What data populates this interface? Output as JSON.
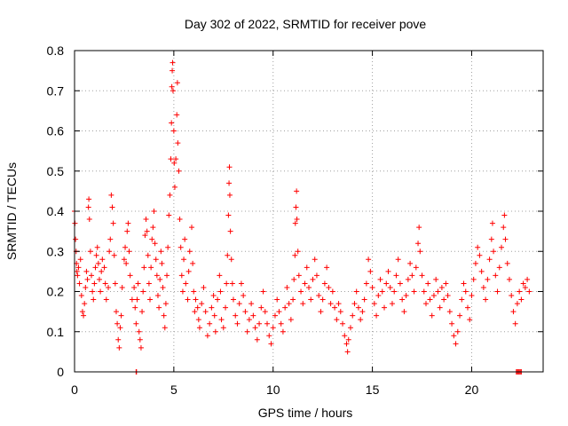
{
  "chart_data": {
    "type": "scatter",
    "title": "Day 302 of 2022, SRMTID for receiver pove",
    "xlabel": "GPS time / hours",
    "ylabel": "SRMTID / TECUs",
    "xlim": [
      0,
      23.6
    ],
    "ylim": [
      0,
      0.8
    ],
    "xticks": [
      0,
      5,
      10,
      15,
      20
    ],
    "xtick_labels": [
      "0",
      "5",
      "10",
      "15",
      "20"
    ],
    "yticks": [
      0,
      0.1,
      0.2,
      0.3,
      0.4,
      0.5,
      0.6,
      0.7,
      0.8
    ],
    "ytick_labels": [
      "0",
      "0.1",
      "0.2",
      "0.3",
      "0.4",
      "0.5",
      "0.6",
      "0.7",
      "0.8"
    ],
    "grid": true,
    "marker": "+",
    "marker_color": "#ff0000",
    "series": [
      {
        "name": "SRMTID",
        "points": [
          [
            0.0,
            0.4
          ],
          [
            0.02,
            0.37
          ],
          [
            0.05,
            0.33
          ],
          [
            0.08,
            0.3
          ],
          [
            0.1,
            0.27
          ],
          [
            0.12,
            0.25
          ],
          [
            0.15,
            0.24
          ],
          [
            0.2,
            0.26
          ],
          [
            0.25,
            0.22
          ],
          [
            0.3,
            0.28
          ],
          [
            0.35,
            0.19
          ],
          [
            0.4,
            0.15
          ],
          [
            0.45,
            0.14
          ],
          [
            0.5,
            0.17
          ],
          [
            0.55,
            0.21
          ],
          [
            0.6,
            0.25
          ],
          [
            0.65,
            0.23
          ],
          [
            0.7,
            0.41
          ],
          [
            0.72,
            0.43
          ],
          [
            0.75,
            0.38
          ],
          [
            0.8,
            0.3
          ],
          [
            0.85,
            0.24
          ],
          [
            0.9,
            0.2
          ],
          [
            0.95,
            0.18
          ],
          [
            1.0,
            0.22
          ],
          [
            1.05,
            0.26
          ],
          [
            1.1,
            0.29
          ],
          [
            1.15,
            0.31
          ],
          [
            1.2,
            0.27
          ],
          [
            1.25,
            0.23
          ],
          [
            1.3,
            0.2
          ],
          [
            1.35,
            0.25
          ],
          [
            1.4,
            0.28
          ],
          [
            1.5,
            0.26
          ],
          [
            1.55,
            0.22
          ],
          [
            1.6,
            0.18
          ],
          [
            1.7,
            0.21
          ],
          [
            1.75,
            0.3
          ],
          [
            1.8,
            0.33
          ],
          [
            1.85,
            0.44
          ],
          [
            1.9,
            0.41
          ],
          [
            1.95,
            0.37
          ],
          [
            2.0,
            0.29
          ],
          [
            2.05,
            0.22
          ],
          [
            2.1,
            0.15
          ],
          [
            2.15,
            0.12
          ],
          [
            2.2,
            0.08
          ],
          [
            2.25,
            0.06
          ],
          [
            2.3,
            0.11
          ],
          [
            2.35,
            0.14
          ],
          [
            2.4,
            0.21
          ],
          [
            2.5,
            0.28
          ],
          [
            2.55,
            0.31
          ],
          [
            2.6,
            0.27
          ],
          [
            2.65,
            0.35
          ],
          [
            2.7,
            0.37
          ],
          [
            2.75,
            0.3
          ],
          [
            2.8,
            0.24
          ],
          [
            2.9,
            0.18
          ],
          [
            3.0,
            0.21
          ],
          [
            3.05,
            0.16
          ],
          [
            3.1,
            0.12
          ],
          [
            3.15,
            0.18
          ],
          [
            3.2,
            0.22
          ],
          [
            3.25,
            0.1
          ],
          [
            3.3,
            0.08
          ],
          [
            3.35,
            0.06
          ],
          [
            3.4,
            0.15
          ],
          [
            3.45,
            0.2
          ],
          [
            3.5,
            0.26
          ],
          [
            3.55,
            0.34
          ],
          [
            3.6,
            0.38
          ],
          [
            3.65,
            0.35
          ],
          [
            3.7,
            0.29
          ],
          [
            3.75,
            0.22
          ],
          [
            3.8,
            0.18
          ],
          [
            3.85,
            0.26
          ],
          [
            3.9,
            0.33
          ],
          [
            3.95,
            0.36
          ],
          [
            4.0,
            0.4
          ],
          [
            4.05,
            0.32
          ],
          [
            4.1,
            0.28
          ],
          [
            4.15,
            0.24
          ],
          [
            4.2,
            0.19
          ],
          [
            4.25,
            0.16
          ],
          [
            4.3,
            0.23
          ],
          [
            4.35,
            0.3
          ],
          [
            4.4,
            0.27
          ],
          [
            4.45,
            0.21
          ],
          [
            4.5,
            0.14
          ],
          [
            4.55,
            0.11
          ],
          [
            4.6,
            0.17
          ],
          [
            4.65,
            0.24
          ],
          [
            4.7,
            0.31
          ],
          [
            4.75,
            0.39
          ],
          [
            4.8,
            0.44
          ],
          [
            4.85,
            0.53
          ],
          [
            4.88,
            0.62
          ],
          [
            4.9,
            0.71
          ],
          [
            4.92,
            0.75
          ],
          [
            4.94,
            0.77
          ],
          [
            4.96,
            0.7
          ],
          [
            5.0,
            0.6
          ],
          [
            5.02,
            0.52
          ],
          [
            5.05,
            0.46
          ],
          [
            5.1,
            0.53
          ],
          [
            5.15,
            0.64
          ],
          [
            5.18,
            0.72
          ],
          [
            5.2,
            0.57
          ],
          [
            5.25,
            0.5
          ],
          [
            5.3,
            0.38
          ],
          [
            5.35,
            0.31
          ],
          [
            5.4,
            0.24
          ],
          [
            5.45,
            0.2
          ],
          [
            5.5,
            0.28
          ],
          [
            5.55,
            0.33
          ],
          [
            5.6,
            0.22
          ],
          [
            5.7,
            0.18
          ],
          [
            5.75,
            0.25
          ],
          [
            5.8,
            0.3
          ],
          [
            5.9,
            0.36
          ],
          [
            5.95,
            0.27
          ],
          [
            6.0,
            0.2
          ],
          [
            6.05,
            0.15
          ],
          [
            6.1,
            0.18
          ],
          [
            6.2,
            0.16
          ],
          [
            6.25,
            0.13
          ],
          [
            6.3,
            0.11
          ],
          [
            6.4,
            0.17
          ],
          [
            6.5,
            0.21
          ],
          [
            6.6,
            0.15
          ],
          [
            6.7,
            0.09
          ],
          [
            6.8,
            0.12
          ],
          [
            6.9,
            0.16
          ],
          [
            7.0,
            0.19
          ],
          [
            7.05,
            0.14
          ],
          [
            7.1,
            0.1
          ],
          [
            7.2,
            0.18
          ],
          [
            7.3,
            0.24
          ],
          [
            7.35,
            0.2
          ],
          [
            7.4,
            0.13
          ],
          [
            7.5,
            0.11
          ],
          [
            7.6,
            0.16
          ],
          [
            7.65,
            0.22
          ],
          [
            7.7,
            0.29
          ],
          [
            7.75,
            0.39
          ],
          [
            7.78,
            0.47
          ],
          [
            7.8,
            0.51
          ],
          [
            7.82,
            0.44
          ],
          [
            7.85,
            0.35
          ],
          [
            7.9,
            0.28
          ],
          [
            7.95,
            0.22
          ],
          [
            8.0,
            0.18
          ],
          [
            8.1,
            0.14
          ],
          [
            8.2,
            0.12
          ],
          [
            8.3,
            0.17
          ],
          [
            8.4,
            0.22
          ],
          [
            8.5,
            0.19
          ],
          [
            8.6,
            0.15
          ],
          [
            8.7,
            0.1
          ],
          [
            8.8,
            0.13
          ],
          [
            8.9,
            0.17
          ],
          [
            9.0,
            0.14
          ],
          [
            9.1,
            0.11
          ],
          [
            9.2,
            0.08
          ],
          [
            9.3,
            0.12
          ],
          [
            9.4,
            0.16
          ],
          [
            9.5,
            0.2
          ],
          [
            9.6,
            0.15
          ],
          [
            9.7,
            0.12
          ],
          [
            9.8,
            0.09
          ],
          [
            9.9,
            0.07
          ],
          [
            10.0,
            0.11
          ],
          [
            10.1,
            0.14
          ],
          [
            10.2,
            0.18
          ],
          [
            10.3,
            0.15
          ],
          [
            10.4,
            0.12
          ],
          [
            10.5,
            0.1
          ],
          [
            10.6,
            0.16
          ],
          [
            10.7,
            0.21
          ],
          [
            10.8,
            0.17
          ],
          [
            10.9,
            0.13
          ],
          [
            11.0,
            0.18
          ],
          [
            11.05,
            0.23
          ],
          [
            11.1,
            0.29
          ],
          [
            11.12,
            0.37
          ],
          [
            11.15,
            0.41
          ],
          [
            11.18,
            0.45
          ],
          [
            11.2,
            0.38
          ],
          [
            11.25,
            0.3
          ],
          [
            11.3,
            0.24
          ],
          [
            11.4,
            0.2
          ],
          [
            11.5,
            0.17
          ],
          [
            11.6,
            0.22
          ],
          [
            11.7,
            0.26
          ],
          [
            11.8,
            0.21
          ],
          [
            11.9,
            0.18
          ],
          [
            12.0,
            0.23
          ],
          [
            12.1,
            0.28
          ],
          [
            12.2,
            0.24
          ],
          [
            12.3,
            0.19
          ],
          [
            12.4,
            0.15
          ],
          [
            12.5,
            0.18
          ],
          [
            12.6,
            0.22
          ],
          [
            12.7,
            0.26
          ],
          [
            12.8,
            0.21
          ],
          [
            12.9,
            0.17
          ],
          [
            13.0,
            0.2
          ],
          [
            13.1,
            0.16
          ],
          [
            13.2,
            0.13
          ],
          [
            13.3,
            0.17
          ],
          [
            13.4,
            0.15
          ],
          [
            13.5,
            0.12
          ],
          [
            13.6,
            0.09
          ],
          [
            13.7,
            0.07
          ],
          [
            13.75,
            0.05
          ],
          [
            13.8,
            0.08
          ],
          [
            13.9,
            0.11
          ],
          [
            14.0,
            0.14
          ],
          [
            14.1,
            0.17
          ],
          [
            14.2,
            0.2
          ],
          [
            14.3,
            0.16
          ],
          [
            14.4,
            0.13
          ],
          [
            14.5,
            0.15
          ],
          [
            14.6,
            0.18
          ],
          [
            14.7,
            0.22
          ],
          [
            14.8,
            0.28
          ],
          [
            14.9,
            0.25
          ],
          [
            15.0,
            0.21
          ],
          [
            15.1,
            0.17
          ],
          [
            15.2,
            0.14
          ],
          [
            15.3,
            0.19
          ],
          [
            15.4,
            0.23
          ],
          [
            15.5,
            0.2
          ],
          [
            15.6,
            0.16
          ],
          [
            15.7,
            0.22
          ],
          [
            15.8,
            0.25
          ],
          [
            15.9,
            0.21
          ],
          [
            16.0,
            0.17
          ],
          [
            16.1,
            0.2
          ],
          [
            16.2,
            0.24
          ],
          [
            16.3,
            0.28
          ],
          [
            16.4,
            0.22
          ],
          [
            16.5,
            0.18
          ],
          [
            16.6,
            0.15
          ],
          [
            16.7,
            0.19
          ],
          [
            16.8,
            0.23
          ],
          [
            16.9,
            0.27
          ],
          [
            17.0,
            0.24
          ],
          [
            17.1,
            0.2
          ],
          [
            17.2,
            0.26
          ],
          [
            17.3,
            0.32
          ],
          [
            17.35,
            0.36
          ],
          [
            17.4,
            0.3
          ],
          [
            17.5,
            0.24
          ],
          [
            17.6,
            0.2
          ],
          [
            17.7,
            0.17
          ],
          [
            17.8,
            0.22
          ],
          [
            17.9,
            0.18
          ],
          [
            18.0,
            0.14
          ],
          [
            18.1,
            0.19
          ],
          [
            18.2,
            0.23
          ],
          [
            18.3,
            0.2
          ],
          [
            18.4,
            0.16
          ],
          [
            18.5,
            0.21
          ],
          [
            18.6,
            0.18
          ],
          [
            18.7,
            0.22
          ],
          [
            18.8,
            0.19
          ],
          [
            18.9,
            0.15
          ],
          [
            19.0,
            0.12
          ],
          [
            19.1,
            0.09
          ],
          [
            19.2,
            0.07
          ],
          [
            19.3,
            0.1
          ],
          [
            19.4,
            0.14
          ],
          [
            19.5,
            0.18
          ],
          [
            19.6,
            0.22
          ],
          [
            19.7,
            0.2
          ],
          [
            19.8,
            0.16
          ],
          [
            19.9,
            0.13
          ],
          [
            20.0,
            0.19
          ],
          [
            20.1,
            0.23
          ],
          [
            20.2,
            0.27
          ],
          [
            20.3,
            0.31
          ],
          [
            20.4,
            0.29
          ],
          [
            20.5,
            0.25
          ],
          [
            20.6,
            0.21
          ],
          [
            20.7,
            0.18
          ],
          [
            20.8,
            0.23
          ],
          [
            20.9,
            0.28
          ],
          [
            21.0,
            0.33
          ],
          [
            21.05,
            0.37
          ],
          [
            21.1,
            0.3
          ],
          [
            21.2,
            0.24
          ],
          [
            21.3,
            0.2
          ],
          [
            21.4,
            0.26
          ],
          [
            21.5,
            0.31
          ],
          [
            21.6,
            0.36
          ],
          [
            21.65,
            0.39
          ],
          [
            21.7,
            0.33
          ],
          [
            21.8,
            0.27
          ],
          [
            21.9,
            0.23
          ],
          [
            22.0,
            0.19
          ],
          [
            22.1,
            0.15
          ],
          [
            22.2,
            0.12
          ],
          [
            22.3,
            0.17
          ],
          [
            22.4,
            0.2
          ],
          [
            22.5,
            0.18
          ],
          [
            22.6,
            0.22
          ],
          [
            22.7,
            0.21
          ],
          [
            22.8,
            0.23
          ],
          [
            22.9,
            0.2
          ],
          [
            3.1,
            0.0
          ],
          [
            3.12,
            0.0
          ],
          [
            22.25,
            0.0
          ],
          [
            22.3,
            0.0
          ],
          [
            22.35,
            0.0
          ],
          [
            22.4,
            0.0
          ],
          [
            22.45,
            0.0
          ],
          [
            22.5,
            0.0
          ]
        ]
      }
    ]
  }
}
